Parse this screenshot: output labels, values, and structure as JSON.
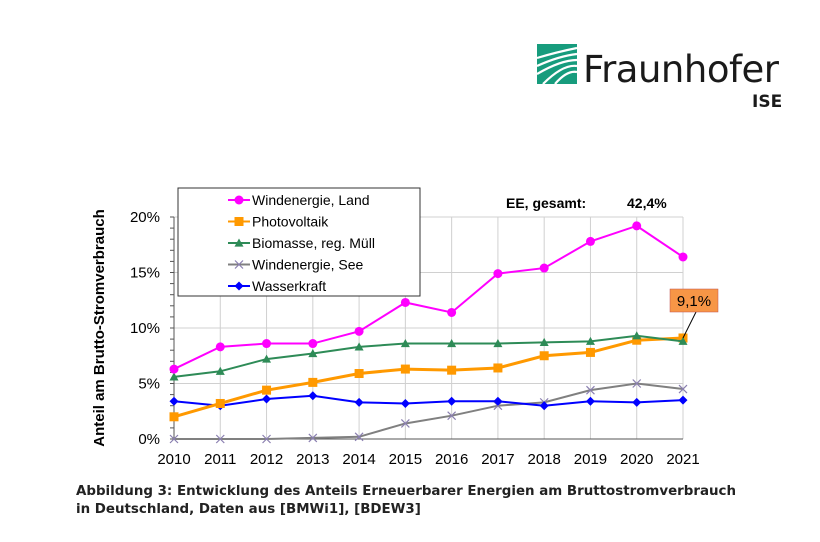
{
  "logo": {
    "name": "Fraunhofer",
    "sub": "ISE",
    "color": "#179c7d"
  },
  "caption": "Abbildung 3: Entwicklung des Anteils Erneuerbarer Energien am Bruttostromverbrauch in Deutschland, Daten aus [BMWi1], [BDEW3]",
  "chart_data": {
    "type": "line",
    "ylabel": "Anteil am Brutto-Stromverbrauch",
    "x": [
      2010,
      2011,
      2012,
      2013,
      2014,
      2015,
      2016,
      2017,
      2018,
      2019,
      2020,
      2021
    ],
    "ylim": [
      0,
      20
    ],
    "yticks": [
      "0%",
      "5%",
      "10%",
      "15%",
      "20%"
    ],
    "grid": true,
    "legend": "top-left",
    "annotation_total_label": "EE, gesamt:",
    "annotation_total_value": "42,4%",
    "callout": "9,1%",
    "series": [
      {
        "name": "Windenergie, Land",
        "color": "#ff00ff",
        "marker": "circle",
        "values": [
          6.3,
          8.3,
          8.6,
          8.6,
          9.7,
          12.3,
          11.4,
          14.9,
          15.4,
          17.8,
          19.2,
          16.4
        ]
      },
      {
        "name": "Photovoltaik",
        "color": "#ff9900",
        "marker": "square",
        "values": [
          2.0,
          3.2,
          4.4,
          5.1,
          5.9,
          6.3,
          6.2,
          6.4,
          7.5,
          7.8,
          8.9,
          9.1
        ]
      },
      {
        "name": "Biomasse, reg. Müll",
        "color": "#2e8b57",
        "marker": "triangle",
        "values": [
          5.6,
          6.1,
          7.2,
          7.7,
          8.3,
          8.6,
          8.6,
          8.6,
          8.7,
          8.8,
          9.3,
          8.8
        ]
      },
      {
        "name": "Windenergie, See",
        "color": "#808080",
        "marker": "x",
        "values": [
          0,
          0,
          0,
          0.1,
          0.2,
          1.4,
          2.1,
          3.0,
          3.3,
          4.4,
          5.0,
          4.5
        ]
      },
      {
        "name": "Wasserkraft",
        "color": "#0000ff",
        "marker": "diamond",
        "values": [
          3.4,
          3.0,
          3.6,
          3.9,
          3.3,
          3.2,
          3.4,
          3.4,
          3.0,
          3.4,
          3.3,
          3.5
        ]
      }
    ]
  }
}
